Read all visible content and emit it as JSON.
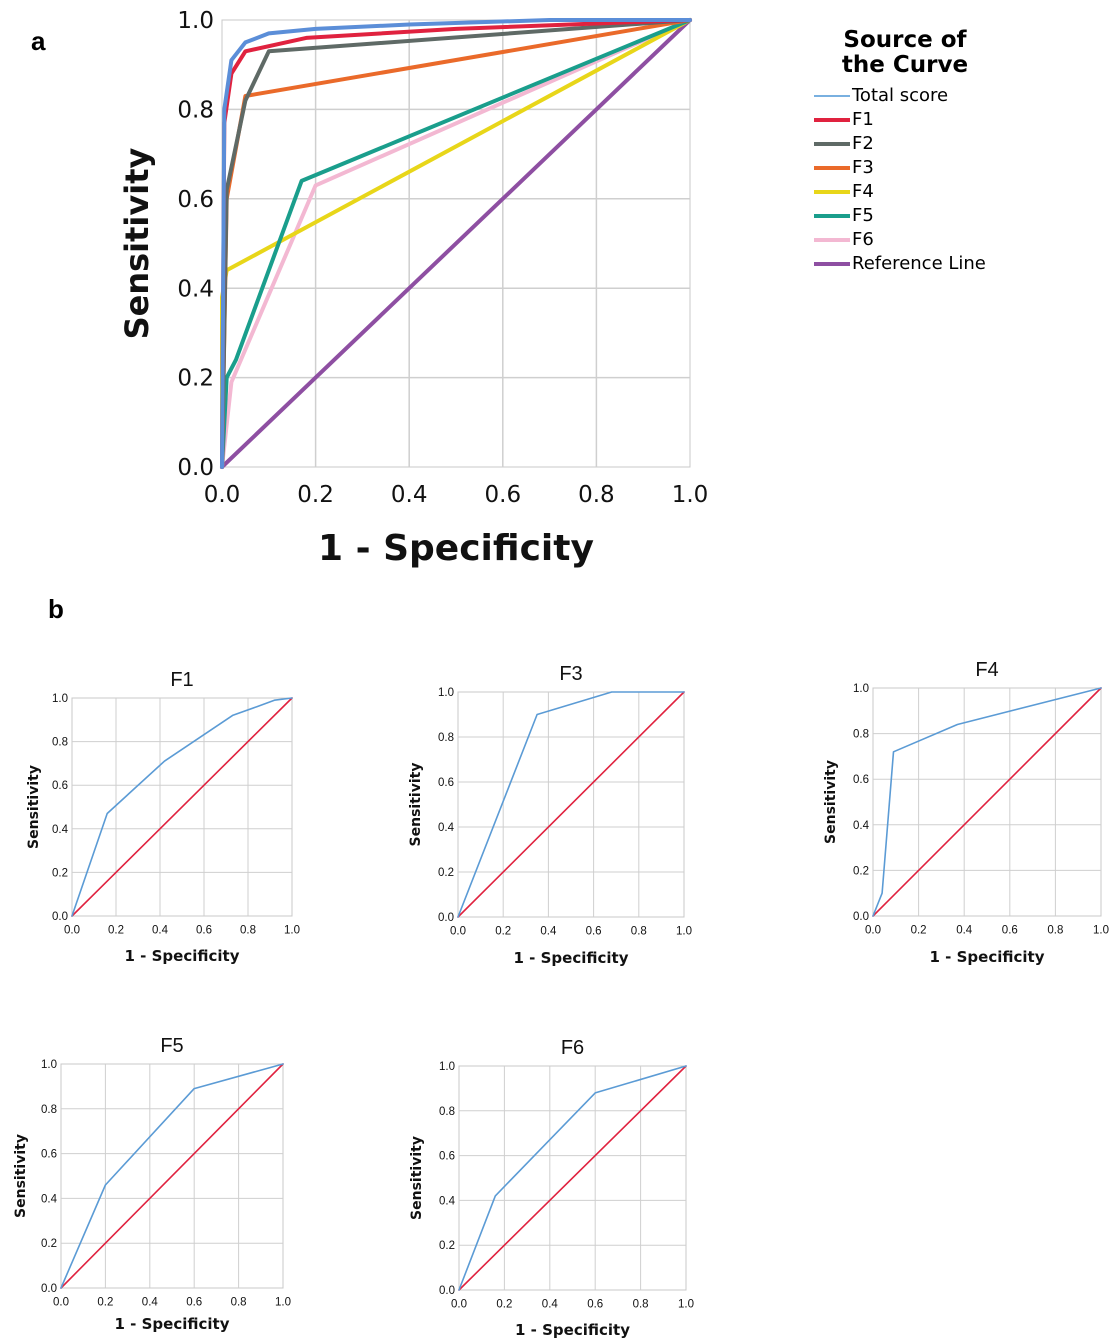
{
  "panel_labels": {
    "a": "a",
    "b": "b"
  },
  "legend": {
    "title_line1": "Source of",
    "title_line2": "the Curve",
    "items": [
      {
        "label": "Total score",
        "color": "#79b0e0"
      },
      {
        "label": "F1",
        "color": "#e0223f"
      },
      {
        "label": "F2",
        "color": "#5f6a66"
      },
      {
        "label": "F3",
        "color": "#ea6a2a"
      },
      {
        "label": "F4",
        "color": "#e8d619"
      },
      {
        "label": "F5",
        "color": "#1a9e8c"
      },
      {
        "label": "F6",
        "color": "#f3b8d2"
      },
      {
        "label": "Reference Line",
        "color": "#8e4fa2"
      }
    ]
  },
  "chart_data": [
    {
      "id": "a",
      "type": "line",
      "title": "",
      "xlabel": "1 - Specificity",
      "ylabel": "Sensitivity",
      "xlim": [
        0,
        1
      ],
      "ylim": [
        0,
        1
      ],
      "ticks": [
        "0.0",
        "0.2",
        "0.4",
        "0.6",
        "0.8",
        "1.0"
      ],
      "grid": true,
      "legend": "right",
      "series": [
        {
          "name": "Reference Line",
          "color": "#8e4fa2",
          "x": [
            0,
            1
          ],
          "y": [
            0,
            1
          ]
        },
        {
          "name": "F6",
          "color": "#f3b8d2",
          "x": [
            0,
            0.02,
            0.2,
            1
          ],
          "y": [
            0,
            0.19,
            0.63,
            1
          ]
        },
        {
          "name": "F4",
          "color": "#e8d619",
          "x": [
            0,
            0,
            0.01,
            1
          ],
          "y": [
            0,
            0.38,
            0.44,
            1
          ]
        },
        {
          "name": "F5",
          "color": "#1a9e8c",
          "x": [
            0,
            0.01,
            0.03,
            0.17,
            1
          ],
          "y": [
            0,
            0.2,
            0.24,
            0.64,
            1
          ]
        },
        {
          "name": "F3",
          "color": "#ea6a2a",
          "x": [
            0,
            0.01,
            0.05,
            1
          ],
          "y": [
            0,
            0.6,
            0.83,
            1
          ]
        },
        {
          "name": "F2",
          "color": "#5f6a66",
          "x": [
            0,
            0.01,
            0.05,
            0.1,
            1
          ],
          "y": [
            0,
            0.62,
            0.82,
            0.93,
            1
          ]
        },
        {
          "name": "F1",
          "color": "#e0223f",
          "x": [
            0,
            0.005,
            0.02,
            0.05,
            0.18,
            0.5,
            1
          ],
          "y": [
            0,
            0.77,
            0.88,
            0.93,
            0.96,
            0.98,
            1
          ]
        },
        {
          "name": "Total score",
          "color": "#5b8ed8",
          "x": [
            0,
            0.005,
            0.02,
            0.05,
            0.1,
            0.2,
            0.4,
            0.7,
            1
          ],
          "y": [
            0,
            0.8,
            0.91,
            0.95,
            0.97,
            0.98,
            0.99,
            1,
            1
          ]
        }
      ]
    },
    {
      "id": "b-F1",
      "type": "line",
      "title": "F1",
      "xlabel": "1 - Specificity",
      "ylabel": "Sensitivity",
      "xlim": [
        0,
        1
      ],
      "ylim": [
        0,
        1
      ],
      "ticks": [
        "0.0",
        "0.2",
        "0.4",
        "0.6",
        "0.8",
        "1.0"
      ],
      "grid": true,
      "series": [
        {
          "color": "#e0223f",
          "x": [
            0,
            1
          ],
          "y": [
            0,
            1
          ]
        },
        {
          "color": "#5b9bd5",
          "x": [
            0,
            0.16,
            0.42,
            0.73,
            0.84,
            0.92,
            1
          ],
          "y": [
            0,
            0.47,
            0.71,
            0.92,
            0.96,
            0.99,
            1
          ]
        }
      ]
    },
    {
      "id": "b-F3",
      "type": "line",
      "title": "F3",
      "xlabel": "1 - Specificity",
      "ylabel": "Sensitivity",
      "xlim": [
        0,
        1
      ],
      "ylim": [
        0,
        1
      ],
      "ticks": [
        "0.0",
        "0.2",
        "0.4",
        "0.6",
        "0.8",
        "1.0"
      ],
      "grid": true,
      "series": [
        {
          "color": "#e0223f",
          "x": [
            0,
            1
          ],
          "y": [
            0,
            1
          ]
        },
        {
          "color": "#5b9bd5",
          "x": [
            0,
            0.35,
            0.68,
            1
          ],
          "y": [
            0,
            0.9,
            1,
            1
          ]
        }
      ]
    },
    {
      "id": "b-F4",
      "type": "line",
      "title": "F4",
      "xlabel": "1 - Specificity",
      "ylabel": "Sensitivity",
      "xlim": [
        0,
        1
      ],
      "ylim": [
        0,
        1
      ],
      "ticks": [
        "0.0",
        "0.2",
        "0.4",
        "0.6",
        "0.8",
        "1.0"
      ],
      "grid": true,
      "series": [
        {
          "color": "#e0223f",
          "x": [
            0,
            1
          ],
          "y": [
            0,
            1
          ]
        },
        {
          "color": "#5b9bd5",
          "x": [
            0,
            0.04,
            0.09,
            0.37,
            1
          ],
          "y": [
            0,
            0.1,
            0.72,
            0.84,
            1
          ]
        }
      ]
    },
    {
      "id": "b-F5",
      "type": "line",
      "title": "F5",
      "xlabel": "1 - Specificity",
      "ylabel": "Sensitivity",
      "xlim": [
        0,
        1
      ],
      "ylim": [
        0,
        1
      ],
      "ticks": [
        "0.0",
        "0.2",
        "0.4",
        "0.6",
        "0.8",
        "1.0"
      ],
      "grid": true,
      "series": [
        {
          "color": "#e0223f",
          "x": [
            0,
            1
          ],
          "y": [
            0,
            1
          ]
        },
        {
          "color": "#5b9bd5",
          "x": [
            0,
            0.2,
            0.6,
            1
          ],
          "y": [
            0,
            0.46,
            0.89,
            1
          ]
        }
      ]
    },
    {
      "id": "b-F6",
      "type": "line",
      "title": "F6",
      "xlabel": "1 - Specificity",
      "ylabel": "Sensitivity",
      "xlim": [
        0,
        1
      ],
      "ylim": [
        0,
        1
      ],
      "ticks": [
        "0.0",
        "0.2",
        "0.4",
        "0.6",
        "0.8",
        "1.0"
      ],
      "grid": true,
      "series": [
        {
          "color": "#e0223f",
          "x": [
            0,
            1
          ],
          "y": [
            0,
            1
          ]
        },
        {
          "color": "#5b9bd5",
          "x": [
            0,
            0.16,
            0.6,
            1
          ],
          "y": [
            0,
            0.42,
            0.88,
            1
          ]
        }
      ]
    }
  ]
}
